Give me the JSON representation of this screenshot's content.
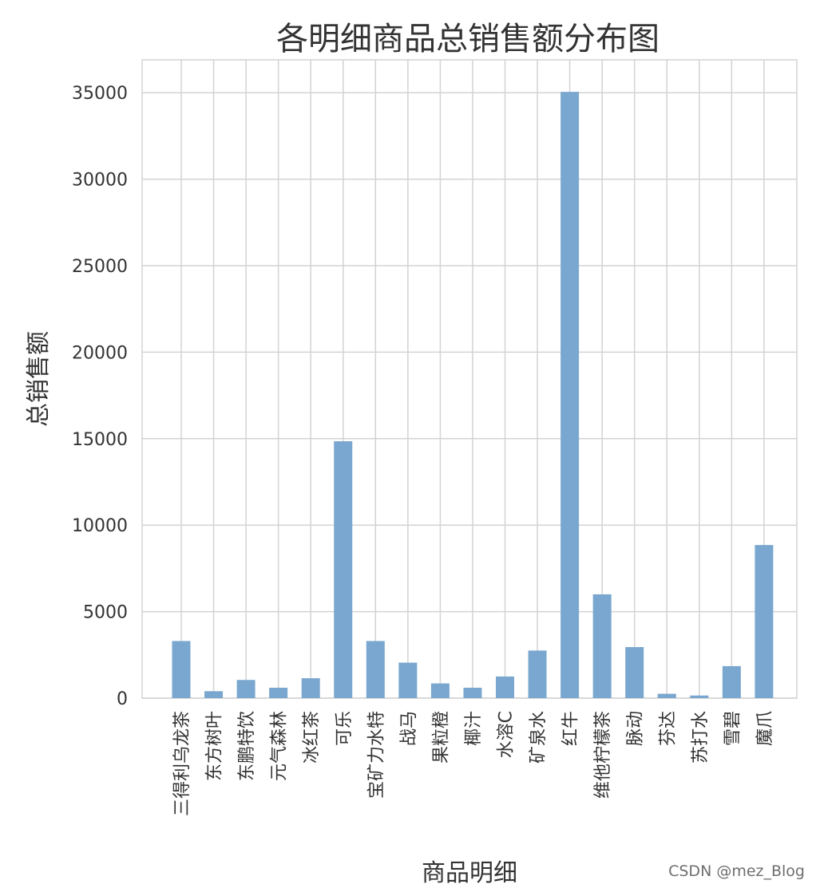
{
  "chart_data": {
    "type": "bar",
    "title": "各明细商品总销售额分布图",
    "xlabel": "商品明细",
    "ylabel": "总销售额",
    "categories": [
      "三得利乌龙茶",
      "东方树叶",
      "东鹏特饮",
      "元气森林",
      "冰红茶",
      "可乐",
      "宝矿力水特",
      "战马",
      "果粒橙",
      "椰汁",
      "水溶C",
      "矿泉水",
      "红牛",
      "维他柠檬茶",
      "脉动",
      "芬达",
      "苏打水",
      "雪碧",
      "魔爪"
    ],
    "values": [
      3300,
      400,
      1050,
      600,
      1150,
      14850,
      3300,
      2050,
      850,
      600,
      1250,
      2750,
      35050,
      6000,
      2950,
      250,
      150,
      1850,
      8850
    ],
    "yticks": [
      0,
      5000,
      10000,
      15000,
      20000,
      25000,
      30000,
      35000
    ],
    "ylim": [
      0,
      36900
    ],
    "grid": true,
    "bar_color": "#7aa7cf"
  },
  "watermark": "CSDN @mez_Blog"
}
